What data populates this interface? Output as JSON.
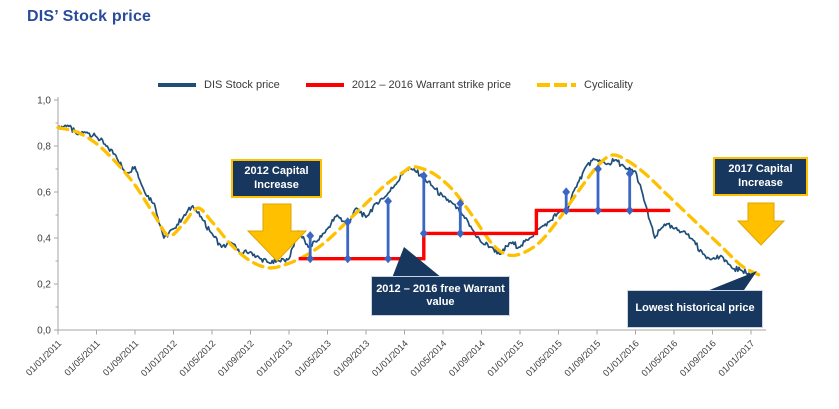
{
  "title": "DIS’ Stock price",
  "legend": {
    "items": [
      {
        "label": "DIS Stock price",
        "color": "#1F4E79",
        "style": "solid"
      },
      {
        "label": "2012 – 2016 Warrant strike price",
        "color": "#FF0000",
        "style": "solid"
      },
      {
        "label": "Cyclicality",
        "color": "#FFC000",
        "style": "dashed"
      }
    ]
  },
  "annotations": {
    "capital_2012": "2012 Capital Increase",
    "capital_2017": "2017 Capital Increase",
    "warrant_value": "2012 – 2016 free Warrant value",
    "lowest_price": "Lowest historical price"
  },
  "chart_data": {
    "type": "line",
    "title": "DIS’ Stock price",
    "y_axis": {
      "min": 0,
      "max": 1,
      "tick_step": 0.2,
      "minor_tick_step": 0.1,
      "tick_labels": [
        "0,0",
        "0,2",
        "0,4",
        "0,6",
        "0,8",
        "1,0"
      ]
    },
    "x_axis": {
      "start": "2011-01",
      "months_per_tick": 4,
      "tick_labels": [
        "01/01/2011",
        "01/05/2011",
        "01/09/2011",
        "01/01/2012",
        "01/05/2012",
        "01/09/2012",
        "01/01/2013",
        "01/05/2013",
        "01/09/2013",
        "01/01/2014",
        "01/05/2014",
        "01/09/2014",
        "01/01/2015",
        "01/05/2015",
        "01/09/2015",
        "01/01/2016",
        "01/05/2016",
        "01/09/2016",
        "01/01/2017"
      ]
    },
    "series": [
      {
        "name": "DIS Stock price",
        "type": "line",
        "color": "#1F4E79",
        "start": "2011-01",
        "interval": "monthly",
        "values": [
          0.88,
          0.89,
          0.85,
          0.86,
          0.84,
          0.8,
          0.76,
          0.68,
          0.71,
          0.6,
          0.55,
          0.4,
          0.44,
          0.49,
          0.54,
          0.48,
          0.42,
          0.36,
          0.38,
          0.33,
          0.34,
          0.31,
          0.29,
          0.3,
          0.31,
          0.43,
          0.36,
          0.39,
          0.44,
          0.5,
          0.46,
          0.53,
          0.49,
          0.55,
          0.58,
          0.63,
          0.69,
          0.7,
          0.66,
          0.62,
          0.58,
          0.55,
          0.5,
          0.44,
          0.38,
          0.36,
          0.33,
          0.38,
          0.36,
          0.4,
          0.44,
          0.47,
          0.51,
          0.53,
          0.64,
          0.72,
          0.74,
          0.72,
          0.74,
          0.7,
          0.69,
          0.55,
          0.4,
          0.46,
          0.44,
          0.43,
          0.39,
          0.33,
          0.31,
          0.32,
          0.27,
          0.26,
          0.24
        ]
      },
      {
        "name": "2012 – 2016 Warrant strike price",
        "type": "step",
        "color": "#FF0000",
        "segments": [
          {
            "start_month": 25.0,
            "end_month": 38.0,
            "strike": 0.31
          },
          {
            "start_month": 38.0,
            "end_month": 49.7,
            "strike": 0.42
          },
          {
            "start_month": 49.7,
            "end_month": 63.6,
            "strike": 0.52
          }
        ]
      },
      {
        "name": "Cyclicality",
        "type": "smooth_dashed",
        "color": "#FFC000",
        "points": [
          [
            0,
            0.88
          ],
          [
            2,
            0.86
          ],
          [
            4,
            0.81
          ],
          [
            6,
            0.73
          ],
          [
            8,
            0.63
          ],
          [
            10,
            0.5
          ],
          [
            11.5,
            0.41
          ],
          [
            13,
            0.46
          ],
          [
            14.5,
            0.53
          ],
          [
            16,
            0.47
          ],
          [
            18,
            0.37
          ],
          [
            20,
            0.3
          ],
          [
            22,
            0.27
          ],
          [
            24,
            0.29
          ],
          [
            26,
            0.33
          ],
          [
            28,
            0.39
          ],
          [
            30,
            0.47
          ],
          [
            32,
            0.55
          ],
          [
            34,
            0.63
          ],
          [
            36,
            0.69
          ],
          [
            37,
            0.71
          ],
          [
            39,
            0.68
          ],
          [
            41,
            0.61
          ],
          [
            43,
            0.5
          ],
          [
            45,
            0.38
          ],
          [
            46.5,
            0.33
          ],
          [
            48,
            0.33
          ],
          [
            50,
            0.38
          ],
          [
            52,
            0.48
          ],
          [
            54,
            0.6
          ],
          [
            56,
            0.71
          ],
          [
            57.5,
            0.76
          ],
          [
            59,
            0.74
          ],
          [
            61,
            0.68
          ],
          [
            63,
            0.6
          ],
          [
            65,
            0.52
          ],
          [
            67,
            0.44
          ],
          [
            69,
            0.36
          ],
          [
            71,
            0.28
          ],
          [
            72.8,
            0.24
          ]
        ]
      },
      {
        "name": "2012 – 2016 free Warrant value",
        "type": "vertical_markers",
        "color": "#3B66C4",
        "markers": [
          {
            "month": 26.2,
            "strike": 0.31,
            "stock": 0.41
          },
          {
            "month": 30.1,
            "strike": 0.31,
            "stock": 0.47
          },
          {
            "month": 34.3,
            "strike": 0.31,
            "stock": 0.56
          },
          {
            "month": 38.0,
            "strike": 0.42,
            "stock": 0.67
          },
          {
            "month": 41.8,
            "strike": 0.42,
            "stock": 0.55
          },
          {
            "month": 52.8,
            "strike": 0.52,
            "stock": 0.6
          },
          {
            "month": 56.1,
            "strike": 0.52,
            "stock": 0.7
          },
          {
            "month": 59.4,
            "strike": 0.52,
            "stock": 0.68
          }
        ]
      }
    ]
  }
}
